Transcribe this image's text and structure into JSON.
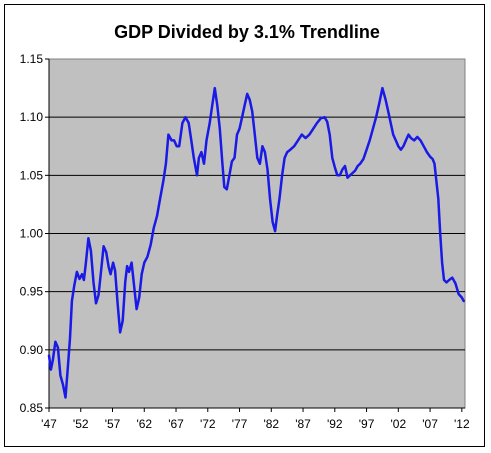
{
  "chart_data": {
    "type": "line",
    "title": "GDP Divided by 3.1% Trendline",
    "xlabel": "",
    "ylabel": "",
    "xlim": [
      1947,
      2012.5
    ],
    "ylim": [
      0.85,
      1.15
    ],
    "y_ticks": [
      0.85,
      0.9,
      0.95,
      1.0,
      1.05,
      1.1,
      1.15
    ],
    "y_tick_labels": [
      "0.85",
      "0.90",
      "0.95",
      "1.00",
      "1.05",
      "1.10",
      "1.15"
    ],
    "x_ticks": [
      1947,
      1952,
      1957,
      1962,
      1967,
      1972,
      1977,
      1982,
      1987,
      1992,
      1997,
      2002,
      2007,
      2012
    ],
    "x_tick_labels": [
      "'47",
      "'52",
      "'57",
      "'62",
      "'67",
      "'72",
      "'77",
      "'82",
      "'87",
      "'92",
      "'97",
      "'02",
      "'07",
      "'12"
    ],
    "grid": "horizontal",
    "legend": "none",
    "colors": {
      "series": "#1a1ae6",
      "plot_background": "#c0c0c0",
      "gridline": "#000000"
    },
    "series": [
      {
        "x": [
          1947.0,
          1947.3,
          1947.6,
          1948.0,
          1948.4,
          1948.8,
          1949.2,
          1949.6,
          1949.9,
          1950.3,
          1950.6,
          1951.0,
          1951.4,
          1951.8,
          1952.2,
          1952.5,
          1952.8,
          1953.2,
          1953.6,
          1954.0,
          1954.4,
          1954.8,
          1955.2,
          1955.6,
          1956.0,
          1956.4,
          1956.7,
          1957.1,
          1957.4,
          1957.8,
          1958.2,
          1958.6,
          1959.0,
          1959.3,
          1959.6,
          1960.0,
          1960.4,
          1960.8,
          1961.2,
          1961.6,
          1962.0,
          1962.5,
          1963.0,
          1963.5,
          1964.0,
          1964.5,
          1965.0,
          1965.4,
          1965.8,
          1966.3,
          1966.7,
          1967.1,
          1967.5,
          1968.0,
          1968.5,
          1969.0,
          1969.4,
          1969.8,
          1970.3,
          1970.6,
          1971.0,
          1971.4,
          1971.8,
          1972.3,
          1972.7,
          1973.1,
          1973.5,
          1973.9,
          1974.3,
          1974.6,
          1975.0,
          1975.4,
          1975.8,
          1976.2,
          1976.6,
          1977.0,
          1977.4,
          1977.8,
          1978.2,
          1978.6,
          1979.0,
          1979.4,
          1979.8,
          1980.2,
          1980.6,
          1981.0,
          1981.4,
          1981.8,
          1982.2,
          1982.6,
          1982.9,
          1983.3,
          1983.7,
          1984.1,
          1984.5,
          1985.0,
          1985.6,
          1986.2,
          1986.8,
          1987.4,
          1988.0,
          1988.6,
          1989.2,
          1989.8,
          1990.4,
          1990.8,
          1991.2,
          1991.6,
          1992.0,
          1992.4,
          1992.8,
          1993.2,
          1993.6,
          1994.0,
          1994.4,
          1994.8,
          1995.2,
          1995.6,
          1996.0,
          1996.5,
          1997.0,
          1997.5,
          1998.0,
          1998.5,
          1999.0,
          1999.5,
          2000.0,
          2000.4,
          2000.8,
          2001.2,
          2001.6,
          2002.0,
          2002.4,
          2002.8,
          2003.2,
          2003.6,
          2004.0,
          2004.5,
          2005.0,
          2005.5,
          2006.0,
          2006.5,
          2007.0,
          2007.4,
          2007.7,
          2008.0,
          2008.3,
          2008.6,
          2008.9,
          2009.2,
          2009.6,
          2010.0,
          2010.5,
          2011.0,
          2011.5,
          2012.0,
          2012.3
        ],
        "values": [
          0.895,
          0.883,
          0.891,
          0.907,
          0.902,
          0.878,
          0.87,
          0.859,
          0.88,
          0.91,
          0.942,
          0.956,
          0.967,
          0.961,
          0.965,
          0.96,
          0.974,
          0.996,
          0.985,
          0.958,
          0.94,
          0.947,
          0.968,
          0.989,
          0.984,
          0.971,
          0.965,
          0.975,
          0.968,
          0.94,
          0.915,
          0.925,
          0.958,
          0.972,
          0.967,
          0.975,
          0.955,
          0.935,
          0.945,
          0.965,
          0.975,
          0.98,
          0.99,
          1.005,
          1.015,
          1.03,
          1.045,
          1.06,
          1.085,
          1.08,
          1.08,
          1.075,
          1.075,
          1.095,
          1.1,
          1.095,
          1.08,
          1.065,
          1.05,
          1.065,
          1.07,
          1.06,
          1.08,
          1.095,
          1.11,
          1.125,
          1.11,
          1.09,
          1.06,
          1.04,
          1.038,
          1.05,
          1.062,
          1.065,
          1.085,
          1.09,
          1.1,
          1.11,
          1.12,
          1.115,
          1.105,
          1.085,
          1.065,
          1.06,
          1.075,
          1.07,
          1.055,
          1.03,
          1.01,
          1.002,
          1.015,
          1.03,
          1.05,
          1.065,
          1.07,
          1.072,
          1.075,
          1.08,
          1.085,
          1.082,
          1.085,
          1.09,
          1.095,
          1.099,
          1.1,
          1.096,
          1.085,
          1.065,
          1.057,
          1.05,
          1.05,
          1.055,
          1.058,
          1.048,
          1.05,
          1.052,
          1.054,
          1.058,
          1.06,
          1.064,
          1.072,
          1.08,
          1.09,
          1.1,
          1.112,
          1.125,
          1.115,
          1.105,
          1.095,
          1.085,
          1.08,
          1.075,
          1.072,
          1.075,
          1.08,
          1.085,
          1.082,
          1.08,
          1.083,
          1.08,
          1.075,
          1.07,
          1.066,
          1.064,
          1.06,
          1.045,
          1.03,
          1.0,
          0.975,
          0.96,
          0.958,
          0.96,
          0.962,
          0.957,
          0.948,
          0.945,
          0.942
        ]
      }
    ]
  }
}
